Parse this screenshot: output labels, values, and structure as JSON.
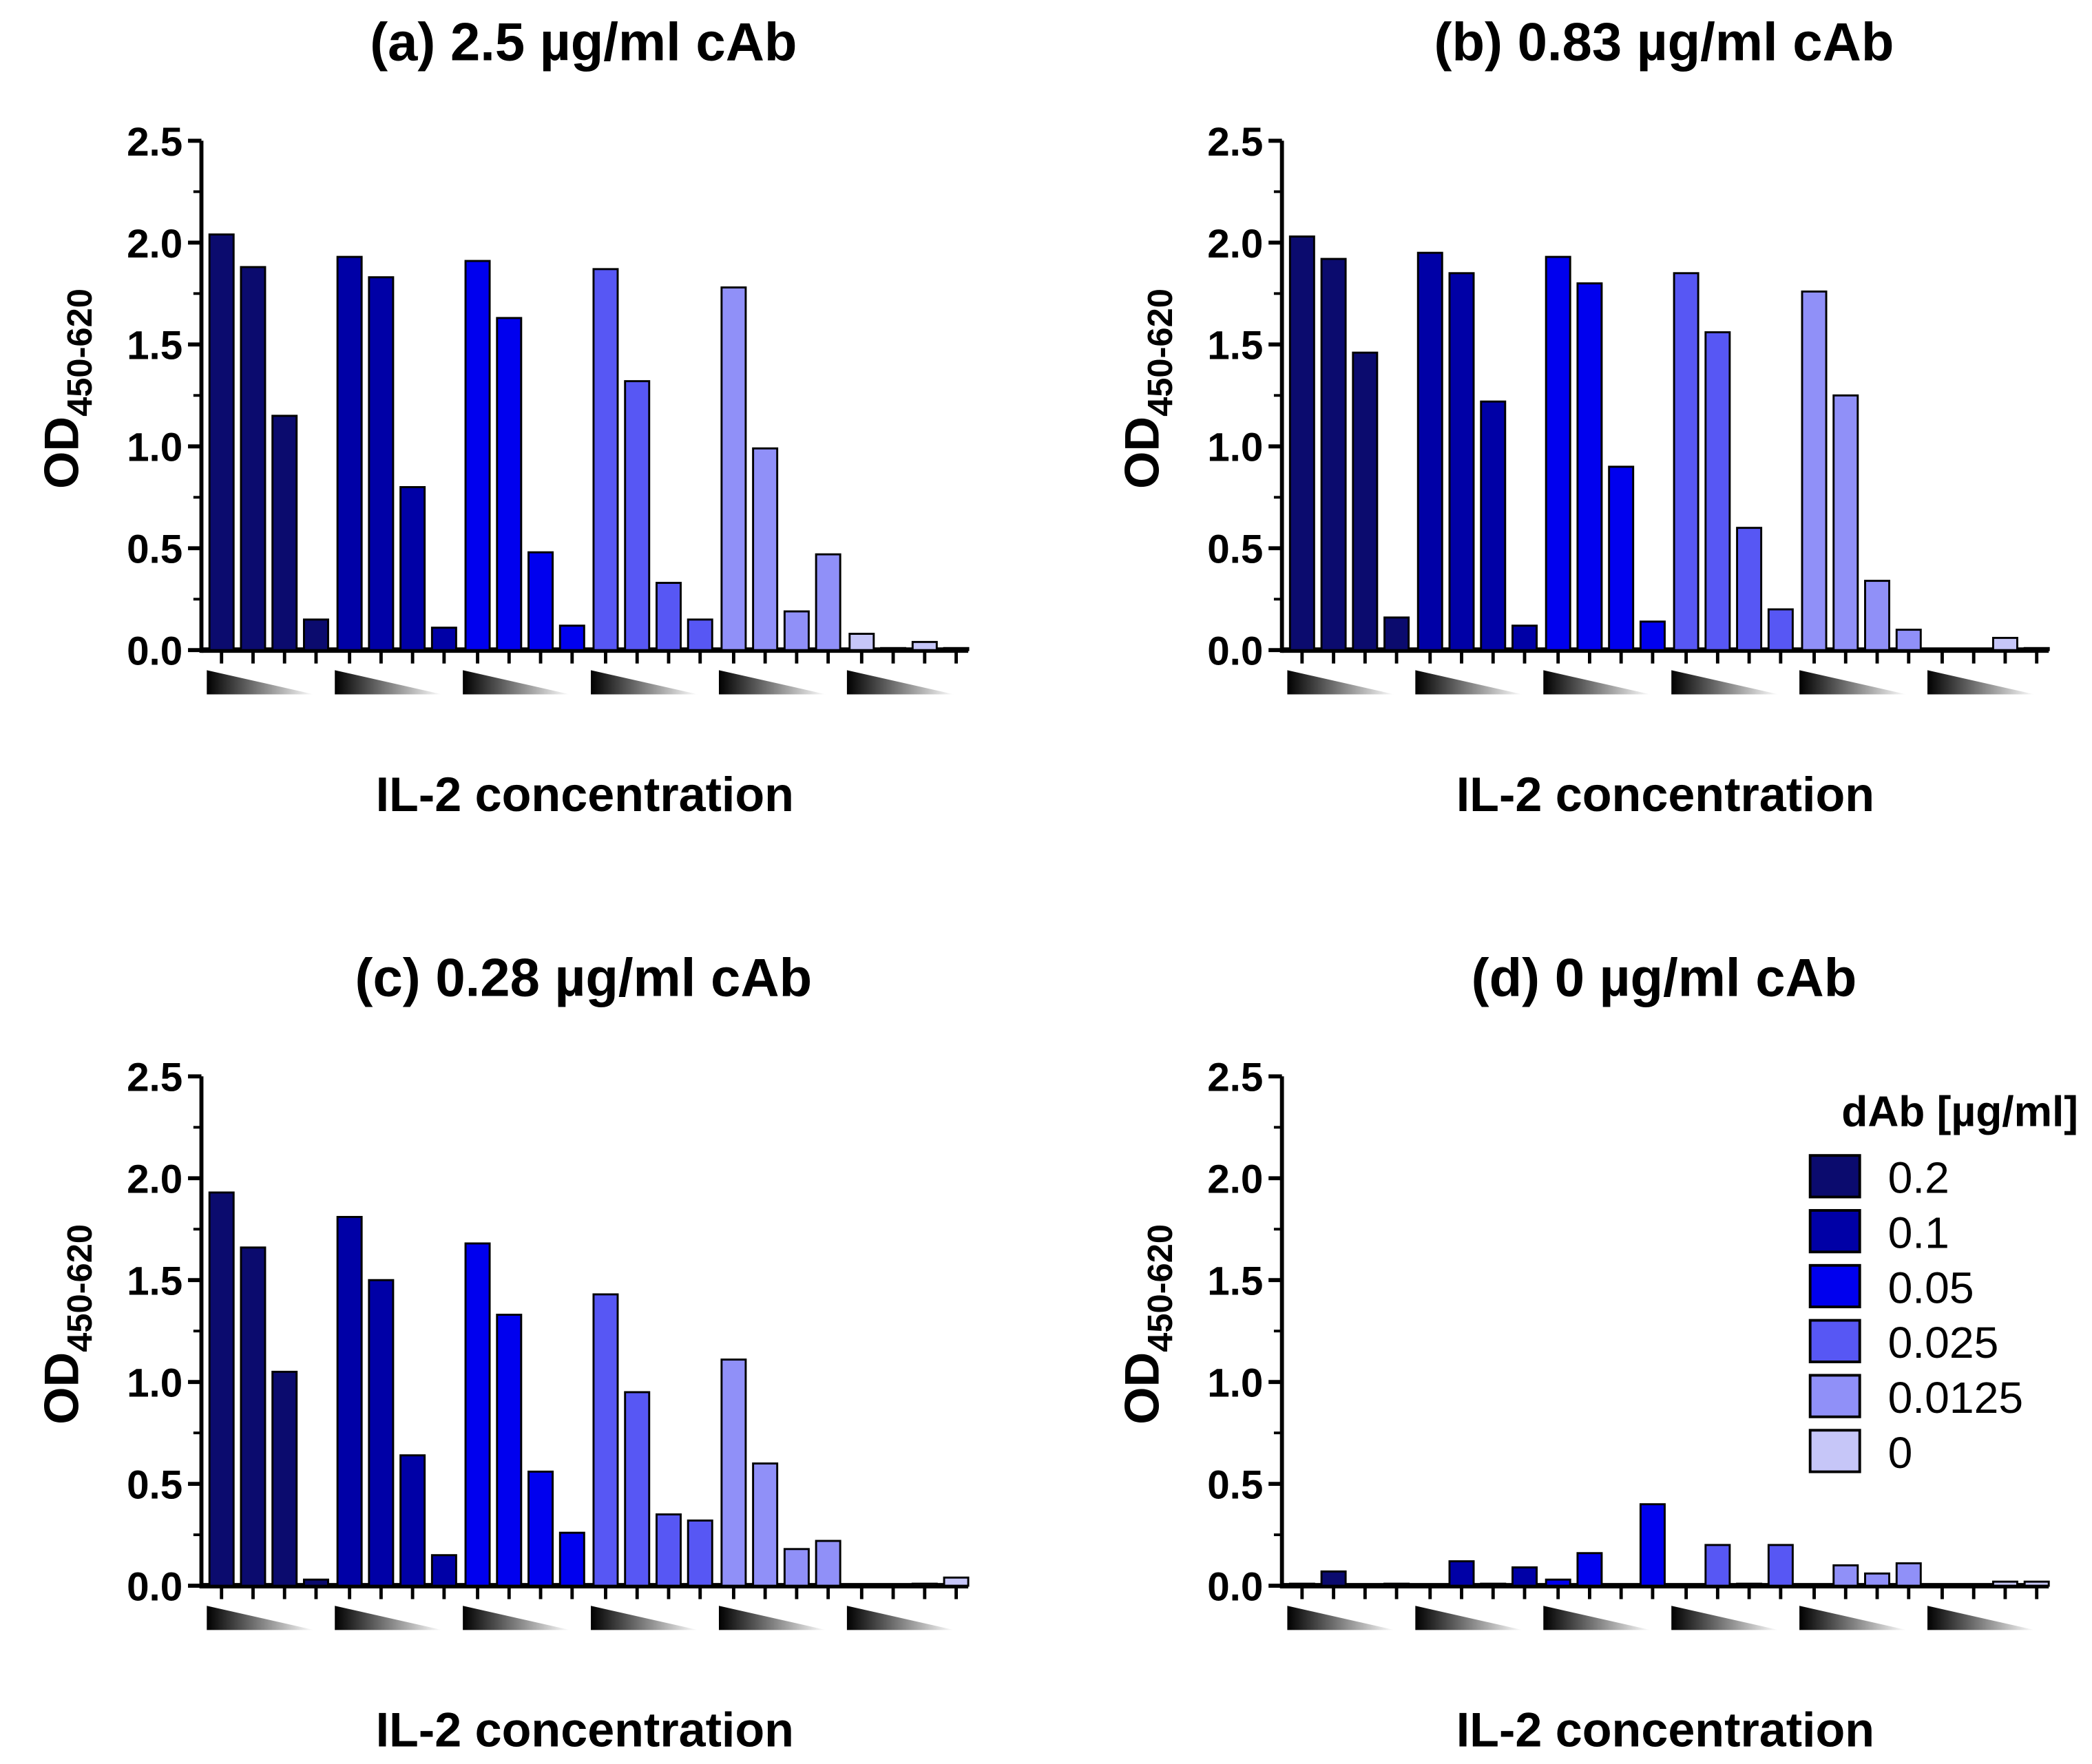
{
  "chart_data": {
    "type": "bar",
    "shared": {
      "ylabel": "OD",
      "ylabel_subscript": "450-620",
      "xlabel": "IL-2 concentration",
      "ylim": [
        0,
        2.5
      ],
      "yticks": [
        "0.0",
        "0.5",
        "1.0",
        "1.5",
        "2.0",
        "2.5"
      ],
      "ytick_values": [
        0,
        0.5,
        1.0,
        1.5,
        2.0,
        2.5
      ]
    },
    "legend": {
      "title": "dAb [µg/ml]",
      "placement": "top-right of panel d",
      "entries": [
        "0.2",
        "0.1",
        "0.05",
        "0.025",
        "0.0125",
        "0"
      ],
      "colors": [
        "#0b0b6e",
        "#0000a6",
        "#0000ee",
        "#5757f4",
        "#9090f8",
        "#c6c6f8"
      ]
    },
    "panels": [
      {
        "id": "a",
        "title": "(a) 2.5 µg/ml cAb",
        "series": [
          {
            "name": "0.2",
            "values": [
              2.04,
              1.88,
              1.15,
              0.15
            ]
          },
          {
            "name": "0.1",
            "values": [
              1.93,
              1.83,
              0.8,
              0.11
            ]
          },
          {
            "name": "0.05",
            "values": [
              1.91,
              1.63,
              0.48,
              0.12
            ]
          },
          {
            "name": "0.025",
            "values": [
              1.87,
              1.32,
              0.33,
              0.15
            ]
          },
          {
            "name": "0.0125",
            "values": [
              1.78,
              0.99,
              0.19,
              0.47
            ]
          },
          {
            "name": "0",
            "values": [
              0.08,
              0.01,
              0.04,
              0.01
            ]
          }
        ]
      },
      {
        "id": "b",
        "title": "(b) 0.83 µg/ml cAb",
        "series": [
          {
            "name": "0.2",
            "values": [
              2.03,
              1.92,
              1.46,
              0.16
            ]
          },
          {
            "name": "0.1",
            "values": [
              1.95,
              1.85,
              1.22,
              0.12
            ]
          },
          {
            "name": "0.05",
            "values": [
              1.93,
              1.8,
              0.9,
              0.14
            ]
          },
          {
            "name": "0.025",
            "values": [
              1.85,
              1.56,
              0.6,
              0.2
            ]
          },
          {
            "name": "0.0125",
            "values": [
              1.76,
              1.25,
              0.34,
              0.1
            ]
          },
          {
            "name": "0",
            "values": [
              0.0,
              0.0,
              0.06,
              0.01
            ]
          }
        ]
      },
      {
        "id": "c",
        "title": "(c) 0.28 µg/ml cAb",
        "series": [
          {
            "name": "0.2",
            "values": [
              1.93,
              1.66,
              1.05,
              0.03
            ]
          },
          {
            "name": "0.1",
            "values": [
              1.81,
              1.5,
              0.64,
              0.15
            ]
          },
          {
            "name": "0.05",
            "values": [
              1.68,
              1.33,
              0.56,
              0.26
            ]
          },
          {
            "name": "0.025",
            "values": [
              1.43,
              0.95,
              0.35,
              0.32
            ]
          },
          {
            "name": "0.0125",
            "values": [
              1.11,
              0.6,
              0.18,
              0.22
            ]
          },
          {
            "name": "0",
            "values": [
              0.0,
              0.0,
              0.01,
              0.04
            ]
          }
        ]
      },
      {
        "id": "d",
        "title": "(d) 0 µg/ml cAb",
        "series": [
          {
            "name": "0.2",
            "values": [
              0.01,
              0.07,
              0.0,
              0.01
            ]
          },
          {
            "name": "0.1",
            "values": [
              0.0,
              0.12,
              0.01,
              0.09
            ]
          },
          {
            "name": "0.05",
            "values": [
              0.03,
              0.16,
              0.0,
              0.4
            ]
          },
          {
            "name": "0.025",
            "values": [
              0.0,
              0.2,
              0.01,
              0.2
            ]
          },
          {
            "name": "0.0125",
            "values": [
              0.0,
              0.1,
              0.06,
              0.11
            ]
          },
          {
            "name": "0",
            "values": [
              0.0,
              0.0,
              0.02,
              0.02
            ]
          }
        ]
      }
    ]
  }
}
